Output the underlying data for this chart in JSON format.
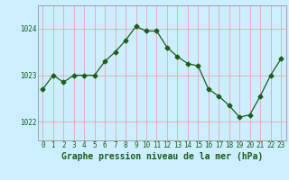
{
  "x": [
    0,
    1,
    2,
    3,
    4,
    5,
    6,
    7,
    8,
    9,
    10,
    11,
    12,
    13,
    14,
    15,
    16,
    17,
    18,
    19,
    20,
    21,
    22,
    23
  ],
  "y": [
    1022.7,
    1023.0,
    1022.85,
    1023.0,
    1023.0,
    1023.0,
    1023.3,
    1023.5,
    1023.75,
    1024.05,
    1023.95,
    1023.95,
    1023.6,
    1023.4,
    1023.25,
    1023.2,
    1022.7,
    1022.55,
    1022.35,
    1022.1,
    1022.15,
    1022.55,
    1023.0,
    1023.35
  ],
  "line_color": "#1a5e1a",
  "marker": "D",
  "marker_size": 2.5,
  "bg_color": "#cceeff",
  "grid_color": "#ee9999",
  "xlabel": "Graphe pression niveau de la mer (hPa)",
  "xlabel_color": "#1a5e1a",
  "xlabel_fontsize": 7,
  "tick_color": "#1a5e1a",
  "tick_fontsize": 5.5,
  "yticks": [
    1022,
    1023,
    1024
  ],
  "ylim": [
    1021.6,
    1024.5
  ],
  "xlim": [
    -0.5,
    23.5
  ],
  "axis_color": "#888888"
}
